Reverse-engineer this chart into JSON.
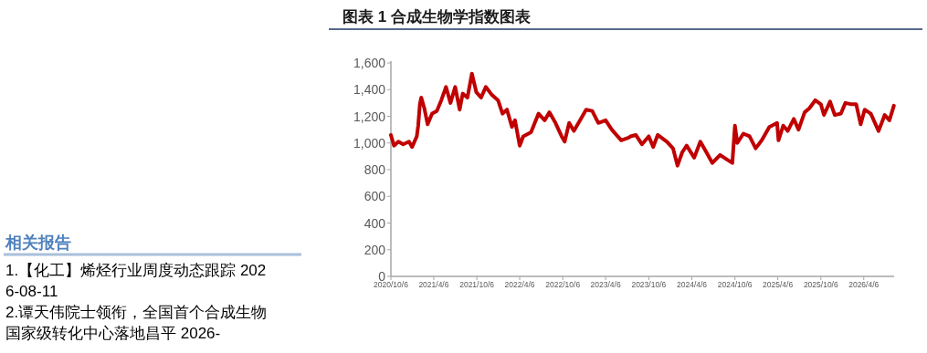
{
  "chart_data": {
    "type": "line",
    "title": "图表 1 合成生物学指数图表",
    "annotations": [
      "相关报告",
      "1.【化工】烯烃行业周度动态跟踪 2026-08-11",
      "2.谭天伟院士领衔，全国首个合成生物国家级转化中心落地昌平 2026-"
    ],
    "x": [
      "2020-10-06",
      "2020-10-19",
      "2020-11-07",
      "2020-11-27",
      "2020-12-22",
      "2021-01-04",
      "2021-01-24",
      "2021-01-30",
      "2021-02-06",
      "2021-02-12",
      "2021-02-25",
      "2021-03-11",
      "2021-03-30",
      "2021-04-19",
      "2021-05-08",
      "2021-05-28",
      "2021-06-16",
      "2021-07-06",
      "2021-07-25",
      "2021-08-07",
      "2021-08-27",
      "2021-09-15",
      "2021-10-04",
      "2021-10-24",
      "2021-11-13",
      "2021-12-09",
      "2022-01-04",
      "2022-01-23",
      "2022-02-11",
      "2022-03-04",
      "2022-03-17",
      "2022-04-06",
      "2022-04-21",
      "2022-05-24",
      "2022-06-25",
      "2022-07-21",
      "2022-08-10",
      "2022-09-05",
      "2022-10-01",
      "2022-10-14",
      "2022-11-02",
      "2022-11-22",
      "2022-12-18",
      "2023-01-13",
      "2023-02-08",
      "2023-03-06",
      "2023-04-06",
      "2023-05-02",
      "2023-06-11",
      "2023-07-13",
      "2023-07-21",
      "2023-08-12",
      "2023-09-07",
      "2023-10-06",
      "2023-10-25",
      "2023-11-13",
      "2023-12-22",
      "2024-01-17",
      "2024-02-05",
      "2024-02-25",
      "2024-03-15",
      "2024-04-16",
      "2024-05-12",
      "2024-06-07",
      "2024-07-02",
      "2024-08-04",
      "2024-08-30",
      "2024-09-25",
      "2024-10-06",
      "2024-10-16",
      "2024-11-11",
      "2024-12-07",
      "2025-01-02",
      "2025-01-28",
      "2025-03-01",
      "2025-04-03",
      "2025-04-09",
      "2025-04-29",
      "2025-05-18",
      "2025-06-13",
      "2025-07-03",
      "2025-07-29",
      "2025-08-18",
      "2025-09-12",
      "2025-10-06",
      "2025-10-19",
      "2025-11-14",
      "2025-12-04",
      "2025-12-30",
      "2026-01-18",
      "2026-02-13",
      "2026-03-05",
      "2026-03-24",
      "2026-04-10",
      "2026-05-06",
      "2026-06-08",
      "2026-07-04",
      "2026-07-24",
      "2026-08-12"
    ],
    "series": [
      {
        "color": "#c00000",
        "values": [
          1060,
          980,
          1010,
          990,
          1010,
          970,
          1050,
          1130,
          1290,
          1340,
          1260,
          1140,
          1220,
          1240,
          1320,
          1420,
          1300,
          1420,
          1250,
          1370,
          1340,
          1520,
          1380,
          1340,
          1420,
          1360,
          1320,
          1220,
          1250,
          1120,
          1170,
          980,
          1050,
          1080,
          1220,
          1170,
          1230,
          1150,
          1050,
          1010,
          1150,
          1090,
          1170,
          1250,
          1240,
          1150,
          1170,
          1100,
          1020,
          1040,
          1050,
          1060,
          990,
          1050,
          970,
          1060,
          1010,
          960,
          830,
          930,
          980,
          890,
          1010,
          930,
          850,
          910,
          880,
          850,
          1130,
          1000,
          1070,
          1050,
          960,
          1020,
          1120,
          1150,
          1020,
          1130,
          1090,
          1180,
          1100,
          1230,
          1260,
          1320,
          1290,
          1210,
          1310,
          1210,
          1220,
          1300,
          1290,
          1290,
          1140,
          1250,
          1220,
          1090,
          1210,
          1170,
          1280
        ]
      }
    ],
    "xlim": [
      "2020-10-06",
      "2026-08-13"
    ],
    "ylim": [
      0,
      1600
    ],
    "xticks": [
      {
        "value": "2020-10-06",
        "label": "2020/10/6"
      },
      {
        "value": "2021-04-06",
        "label": "2021/4/6"
      },
      {
        "value": "2021-10-06",
        "label": "2021/10/6"
      },
      {
        "value": "2022-04-06",
        "label": "2022/4/6"
      },
      {
        "value": "2022-10-06",
        "label": "2022/10/6"
      },
      {
        "value": "2023-04-06",
        "label": "2023/4/6"
      },
      {
        "value": "2023-10-06",
        "label": "2023/10/6"
      },
      {
        "value": "2024-04-06",
        "label": "2024/4/6"
      },
      {
        "value": "2024-10-06",
        "label": "2024/10/6"
      },
      {
        "value": "2025-04-06",
        "label": "2025/4/6"
      },
      {
        "value": "2025-10-06",
        "label": "2025/10/6"
      },
      {
        "value": "2026-04-06",
        "label": "2026/4/6"
      }
    ],
    "yticks": [
      0,
      200,
      400,
      600,
      800,
      {
        "value": 1000,
        "label": "1,000"
      },
      {
        "value": 1200,
        "label": "1,200"
      },
      {
        "value": 1400,
        "label": "1,400"
      },
      {
        "value": 1600,
        "label": "1,600"
      }
    ]
  }
}
